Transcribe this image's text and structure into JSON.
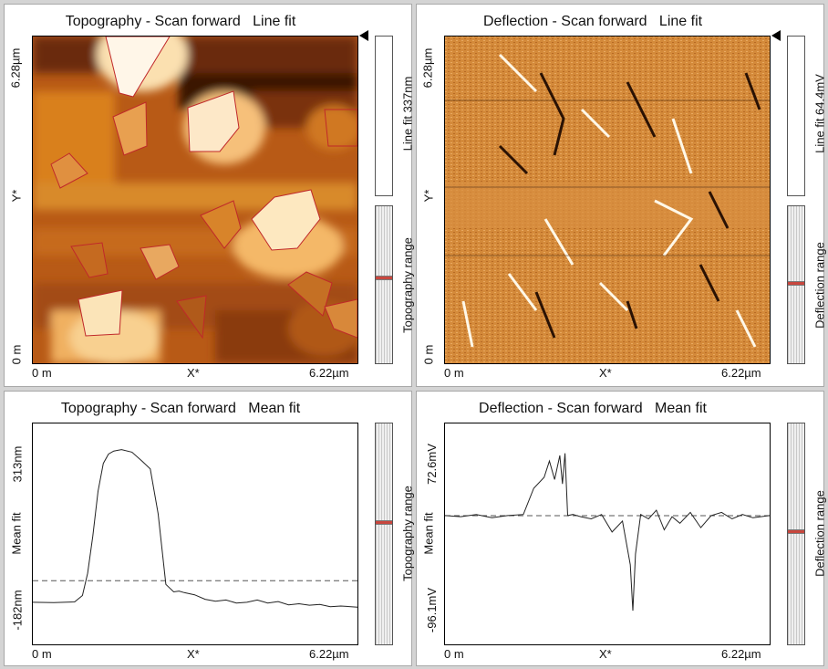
{
  "panels": {
    "topo_image": {
      "title": "Topography - Scan forward",
      "fit": "Line fit",
      "ymax": "6.28µm",
      "ymin": "0 m",
      "yaxis": "Y*",
      "xmin": "0 m",
      "xmax": "6.22µm",
      "xaxis": "X*",
      "colorbar_label": "Line fit 337nm",
      "range_label": "Topography range"
    },
    "defl_image": {
      "title": "Deflection - Scan forward",
      "fit": "Line fit",
      "ymax": "6.28µm",
      "ymin": "0 m",
      "yaxis": "Y*",
      "xmin": "0 m",
      "xmax": "6.22µm",
      "xaxis": "X*",
      "colorbar_label": "Line fit 64.4mV",
      "range_label": "Deflection range"
    },
    "topo_profile": {
      "title": "Topography - Scan forward",
      "fit": "Mean fit",
      "ymax": "313nm",
      "ymin": "-182nm",
      "yaxis": "Mean fit",
      "xmin": "0 m",
      "xmax": "6.22µm",
      "xaxis": "X*",
      "range_label": "Topography range"
    },
    "defl_profile": {
      "title": "Deflection - Scan forward",
      "fit": "Mean fit",
      "ymax": "72.6mV",
      "ymin": "-96.1mV",
      "yaxis": "Mean fit",
      "xmin": "0 m",
      "xmax": "6.22µm",
      "xaxis": "X*",
      "range_label": "Deflection range"
    }
  },
  "colors": {
    "line": "#222222",
    "dashed": "#555555",
    "range_marker": "#c8473e",
    "outline": "#c0282a"
  },
  "chart_data": [
    {
      "type": "heatmap",
      "title": "Topography - Scan forward   Line fit",
      "xlabel": "X*",
      "ylabel": "Y*",
      "xlim": [
        0,
        6.22
      ],
      "ylim": [
        0,
        6.28
      ],
      "colorbar": "Line fit 337nm"
    },
    {
      "type": "heatmap",
      "title": "Deflection - Scan forward   Line fit",
      "xlabel": "X*",
      "ylabel": "Y*",
      "xlim": [
        0,
        6.22
      ],
      "ylim": [
        0,
        6.28
      ],
      "colorbar": "Line fit 64.4mV"
    },
    {
      "type": "line",
      "title": "Topography - Scan forward   Mean fit",
      "xlabel": "X*",
      "ylabel": "Mean fit",
      "xlim": [
        0,
        6.22
      ],
      "ylim": [
        -182,
        313
      ],
      "reference_line": -60,
      "x": [
        0,
        0.4,
        0.8,
        0.95,
        1.05,
        1.15,
        1.25,
        1.35,
        1.45,
        1.55,
        1.7,
        1.9,
        2.1,
        2.25,
        2.4,
        2.55,
        2.7,
        2.8,
        2.9,
        3.1,
        3.3,
        3.5,
        3.7,
        3.9,
        4.1,
        4.3,
        4.5,
        4.7,
        4.9,
        5.1,
        5.3,
        5.5,
        5.7,
        5.9,
        6.22
      ],
      "y": [
        -118,
        -119,
        -117,
        -100,
        -40,
        60,
        180,
        255,
        280,
        288,
        292,
        285,
        260,
        240,
        120,
        -70,
        -90,
        -88,
        -92,
        -98,
        -110,
        -115,
        -112,
        -120,
        -118,
        -112,
        -120,
        -116,
        -125,
        -122,
        -126,
        -124,
        -130,
        -128,
        -131
      ]
    },
    {
      "type": "line",
      "title": "Deflection - Scan forward   Mean fit",
      "xlabel": "X*",
      "ylabel": "Mean fit",
      "xlim": [
        0,
        6.22
      ],
      "ylim": [
        -96.1,
        72.6
      ],
      "reference_line": 5,
      "x": [
        0,
        0.3,
        0.6,
        0.9,
        1.2,
        1.5,
        1.7,
        1.9,
        2.0,
        2.1,
        2.2,
        2.25,
        2.3,
        2.35,
        2.45,
        2.6,
        2.8,
        3.0,
        3.2,
        3.4,
        3.55,
        3.6,
        3.65,
        3.75,
        3.9,
        4.05,
        4.2,
        4.35,
        4.5,
        4.7,
        4.9,
        5.1,
        5.3,
        5.5,
        5.7,
        5.9,
        6.22
      ],
      "y": [
        5,
        4,
        6,
        3,
        5,
        6,
        30,
        40,
        55,
        38,
        60,
        34,
        62,
        5,
        6,
        4,
        2,
        6,
        -10,
        0,
        -40,
        -82,
        -30,
        6,
        2,
        10,
        -8,
        4,
        -2,
        8,
        -6,
        5,
        8,
        2,
        6,
        3,
        5
      ]
    }
  ]
}
